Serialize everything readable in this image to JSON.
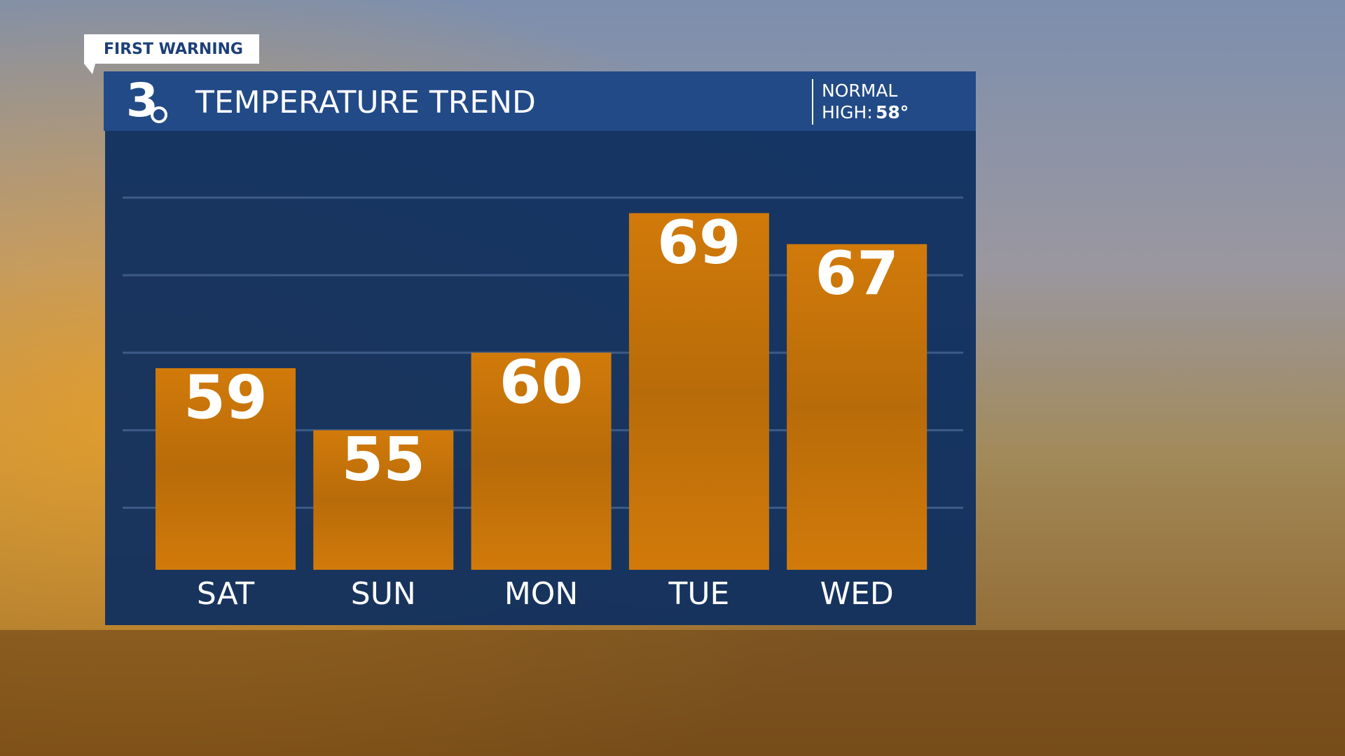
{
  "chart_data": {
    "type": "bar",
    "badge": "FIRST WARNING",
    "logo": "3",
    "title": "TEMPERATURE TREND",
    "normal_label": "NORMAL",
    "high_label": "HIGH:",
    "normal_high": "58°",
    "categories": [
      "SAT",
      "SUN",
      "MON",
      "TUE",
      "WED"
    ],
    "values": [
      59,
      55,
      60,
      69,
      67
    ],
    "color": "#d17a0a",
    "ylim": [
      46,
      72
    ],
    "yticks": [
      50,
      55,
      60,
      65,
      70
    ],
    "grid": true
  }
}
